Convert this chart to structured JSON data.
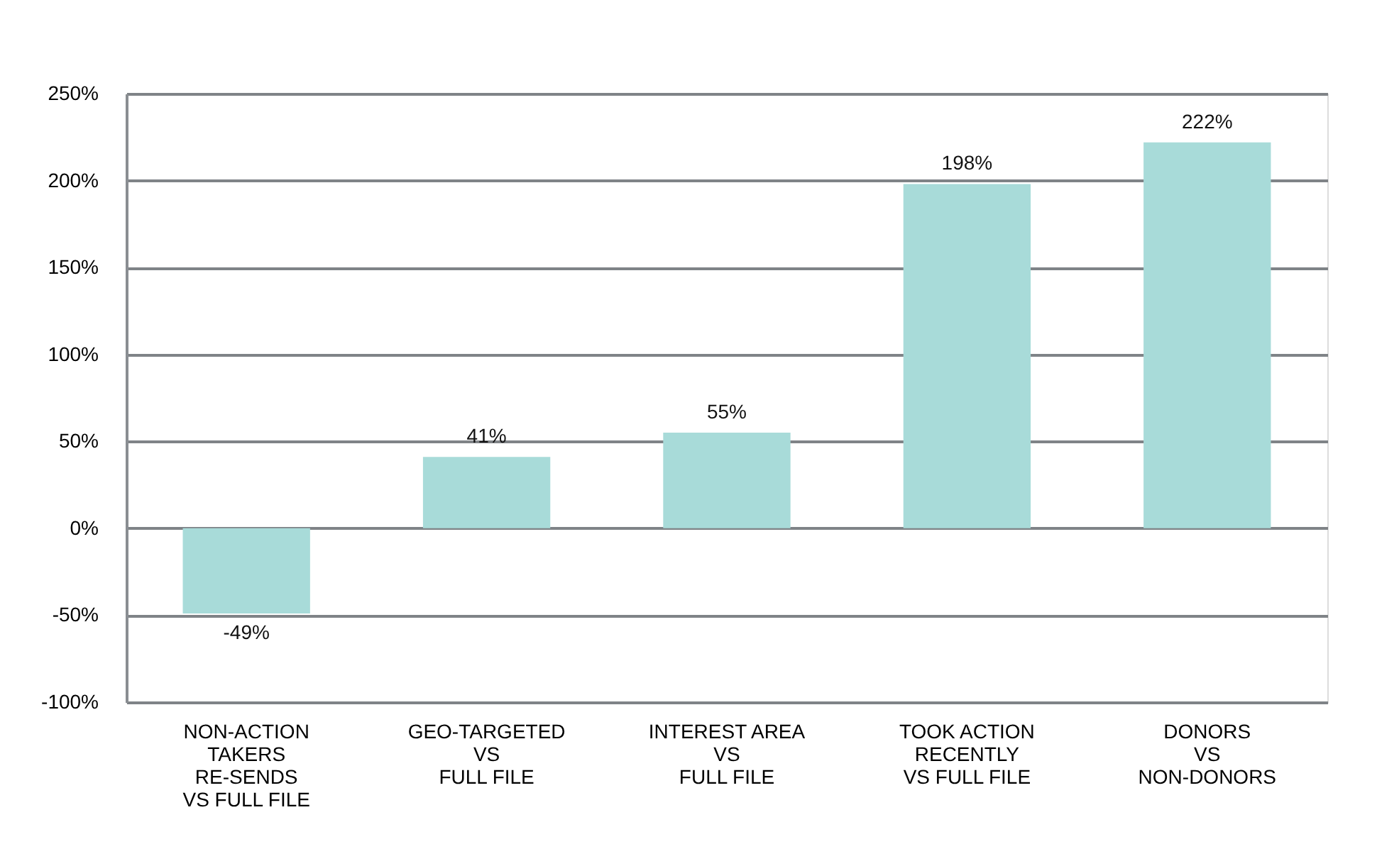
{
  "chart_data": {
    "type": "bar",
    "categories": [
      "NON-ACTION\nTAKERS\nRE-SENDS\nVS FULL FILE",
      "GEO-TARGETED\nVS\nFULL FILE",
      "INTEREST AREA\nVS\nFULL FILE",
      "TOOK ACTION\nRECENTLY\nVS FULL FILE",
      "DONORS\nVS\nNON-DONORS"
    ],
    "values": [
      -49,
      41,
      55,
      198,
      222
    ],
    "value_labels": [
      "-49%",
      "41%",
      "55%",
      "198%",
      "222%"
    ],
    "color": "#a8dbd9",
    "ylim": [
      -100,
      250
    ],
    "yticks": [
      {
        "value": -100,
        "label": "-100%"
      },
      {
        "value": -50,
        "label": "-50%"
      },
      {
        "value": 0,
        "label": "0%"
      },
      {
        "value": 50,
        "label": "50%"
      },
      {
        "value": 100,
        "label": "100%"
      },
      {
        "value": 150,
        "label": "150%"
      },
      {
        "value": 200,
        "label": "200%"
      },
      {
        "value": 250,
        "label": "250%"
      }
    ],
    "grid": "y"
  }
}
